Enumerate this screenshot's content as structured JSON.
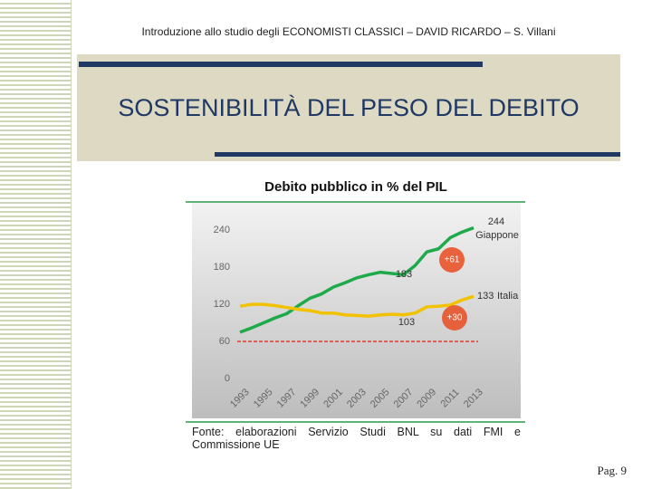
{
  "header": "Introduzione allo studio degli ECONOMISTI CLASSICI – DAVID RICARDO – S. Villani",
  "slide_title": "SOSTENIBILITÀ DEL PESO DEL DEBITO",
  "page": "Pag. 9",
  "chart_data": {
    "type": "line",
    "title": "Debito pubblico in % del PIL",
    "categories": [
      "1993",
      null,
      "1995",
      null,
      "1997",
      null,
      "1999",
      null,
      "2001",
      null,
      "2003",
      null,
      "2005",
      null,
      "2007",
      null,
      "2009",
      null,
      "2011",
      null,
      "2013"
    ],
    "series": [
      {
        "name": "Giappone",
        "color": "#1faa4a",
        "values": [
          75,
          82,
          90,
          98,
          105,
          118,
          130,
          137,
          148,
          155,
          163,
          168,
          172,
          170,
          168,
          183,
          205,
          210,
          228,
          237,
          244
        ]
      },
      {
        "name": "Italia",
        "color": "#f2c200",
        "values": [
          117,
          120,
          120,
          118,
          115,
          112,
          110,
          106,
          106,
          103,
          102,
          101,
          103,
          104,
          103,
          106,
          116,
          117,
          119,
          127,
          133
        ]
      }
    ],
    "ylim": [
      0,
      280
    ],
    "yticks": [
      0,
      60,
      120,
      180,
      240
    ],
    "reference_line": {
      "value": 60,
      "color": "#e03020"
    },
    "annotations": [
      "+61",
      "+30"
    ],
    "source": "Fonte: elaborazioni Servizio Studi BNL su dati FMI e Commissione UE"
  }
}
